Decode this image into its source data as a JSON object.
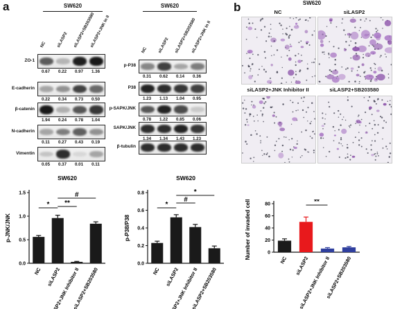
{
  "panel_a": {
    "letter": "a",
    "left_blot": {
      "cell_line": "SW620",
      "lanes": [
        "NC",
        "siLASP2",
        "siLASP2+SB203580",
        "siLASP2+JNK In II"
      ],
      "rows": [
        {
          "label": "ZO-1",
          "values": [
            "0.67",
            "0.22",
            "0.97",
            "1.36"
          ],
          "levels": [
            0.67,
            0.22,
            0.97,
            1.0
          ]
        },
        {
          "label": "E-cadherin",
          "values": [
            "0.22",
            "0.34",
            "0.73",
            "0.50"
          ],
          "levels": [
            0.3,
            0.4,
            0.8,
            0.6
          ]
        },
        {
          "label": "β-catenin",
          "values": [
            "1.94",
            "0.24",
            "0.78",
            "1.04"
          ],
          "levels": [
            1.0,
            0.25,
            0.7,
            0.85
          ]
        },
        {
          "label": "N-cadherin",
          "values": [
            "0.11",
            "0.27",
            "0.43",
            "0.19"
          ],
          "levels": [
            0.3,
            0.5,
            0.65,
            0.4
          ]
        },
        {
          "label": "Vimentin",
          "values": [
            "0.05",
            "0.37",
            "0.01",
            "0.11"
          ],
          "levels": [
            0.15,
            0.9,
            0.05,
            0.3
          ]
        }
      ]
    },
    "right_blot": {
      "cell_line": "SW620",
      "lanes": [
        "NC",
        "siLASP2",
        "siLASP2+SB203580",
        "siLASP2+JNK In II"
      ],
      "rows": [
        {
          "label": "p-P38",
          "values": [
            "0.31",
            "0.62",
            "0.14",
            "0.36"
          ],
          "levels": [
            0.45,
            0.8,
            0.3,
            0.5
          ]
        },
        {
          "label": "P38",
          "values": [
            "1.23",
            "1.13",
            "1.04",
            "0.95"
          ],
          "levels": [
            0.95,
            0.9,
            0.85,
            0.8
          ]
        },
        {
          "label": "p-SAPK/JNK",
          "values": [
            "0.78",
            "1.22",
            "0.85",
            "0.06"
          ],
          "levels": [
            0.7,
            0.95,
            0.75,
            0.12
          ]
        },
        {
          "label": "SAPK/JNK",
          "values": [
            "1.34",
            "1.34",
            "1.43",
            "1.23"
          ],
          "levels": [
            0.9,
            0.9,
            0.95,
            0.85
          ]
        },
        {
          "label": "β-tubulin",
          "values": [],
          "levels": [
            0.9,
            0.9,
            0.9,
            0.9
          ]
        }
      ]
    }
  },
  "chart_data": [
    {
      "type": "bar",
      "title": "SW620",
      "ylabel": "p-JNK/JNK",
      "categories": [
        "NC",
        "siLASP2",
        "siLASP2+JNK Inhibitor II",
        "siLASP2+SB203580"
      ],
      "values": [
        0.56,
        0.96,
        0.03,
        0.84
      ],
      "errors": [
        0.03,
        0.06,
        0.01,
        0.04
      ],
      "ylim": [
        0,
        1.5
      ],
      "yticks": [
        "0.0",
        "0.5",
        "1.0",
        "1.5"
      ],
      "color": "#1a1a1a",
      "significance": [
        {
          "from": 0,
          "to": 1,
          "label": "*"
        },
        {
          "from": 1,
          "to": 2,
          "label": "**"
        },
        {
          "from": 1,
          "to": 3,
          "label": "#"
        }
      ]
    },
    {
      "type": "bar",
      "title": "SW620",
      "ylabel": "p-P38/P38",
      "categories": [
        "NC",
        "siLASP2",
        "siLASP2+JNK Inhibitor II",
        "siLASP2+SB203580"
      ],
      "values": [
        0.23,
        0.52,
        0.41,
        0.17
      ],
      "errors": [
        0.02,
        0.03,
        0.03,
        0.025
      ],
      "ylim": [
        0,
        0.8
      ],
      "yticks": [
        "0.0",
        "0.2",
        "0.4",
        "0.6",
        "0.8"
      ],
      "color": "#1a1a1a",
      "significance": [
        {
          "from": 0,
          "to": 1,
          "label": "*"
        },
        {
          "from": 1,
          "to": 2,
          "label": "#"
        },
        {
          "from": 1,
          "to": 3,
          "label": "*"
        }
      ]
    },
    {
      "type": "bar",
      "title": "",
      "ylabel": "Number of invaded cells",
      "categories": [
        "NC",
        "siLASP2",
        "siLASP2+JNK Inhibitor II",
        "siLASP2+SB203580"
      ],
      "values": [
        19,
        50,
        6,
        8
      ],
      "errors": [
        3,
        8,
        1.5,
        1.5
      ],
      "ylim": [
        0,
        80
      ],
      "yticks": [
        "0",
        "20",
        "40",
        "60",
        "80"
      ],
      "colors": [
        "#1a1a1a",
        "#e8191c",
        "#2f3f9e",
        "#2f3f9e"
      ],
      "significance": [
        {
          "from": 0,
          "to": 1,
          "label": "**"
        },
        {
          "from": 1,
          "to": 2,
          "label": "**"
        },
        {
          "from": 1,
          "to": 3,
          "label": "**"
        }
      ]
    }
  ],
  "panel_b": {
    "letter": "b",
    "cell_line": "SW620",
    "images": [
      {
        "label": "NC",
        "purple": 0.35
      },
      {
        "label": "siLASP2",
        "purple": 0.9
      },
      {
        "label": "siLASP2+JNK Inhibitor II",
        "purple": 0.15
      },
      {
        "label": "siLASP2+SB203580",
        "purple": 0.2
      }
    ]
  }
}
